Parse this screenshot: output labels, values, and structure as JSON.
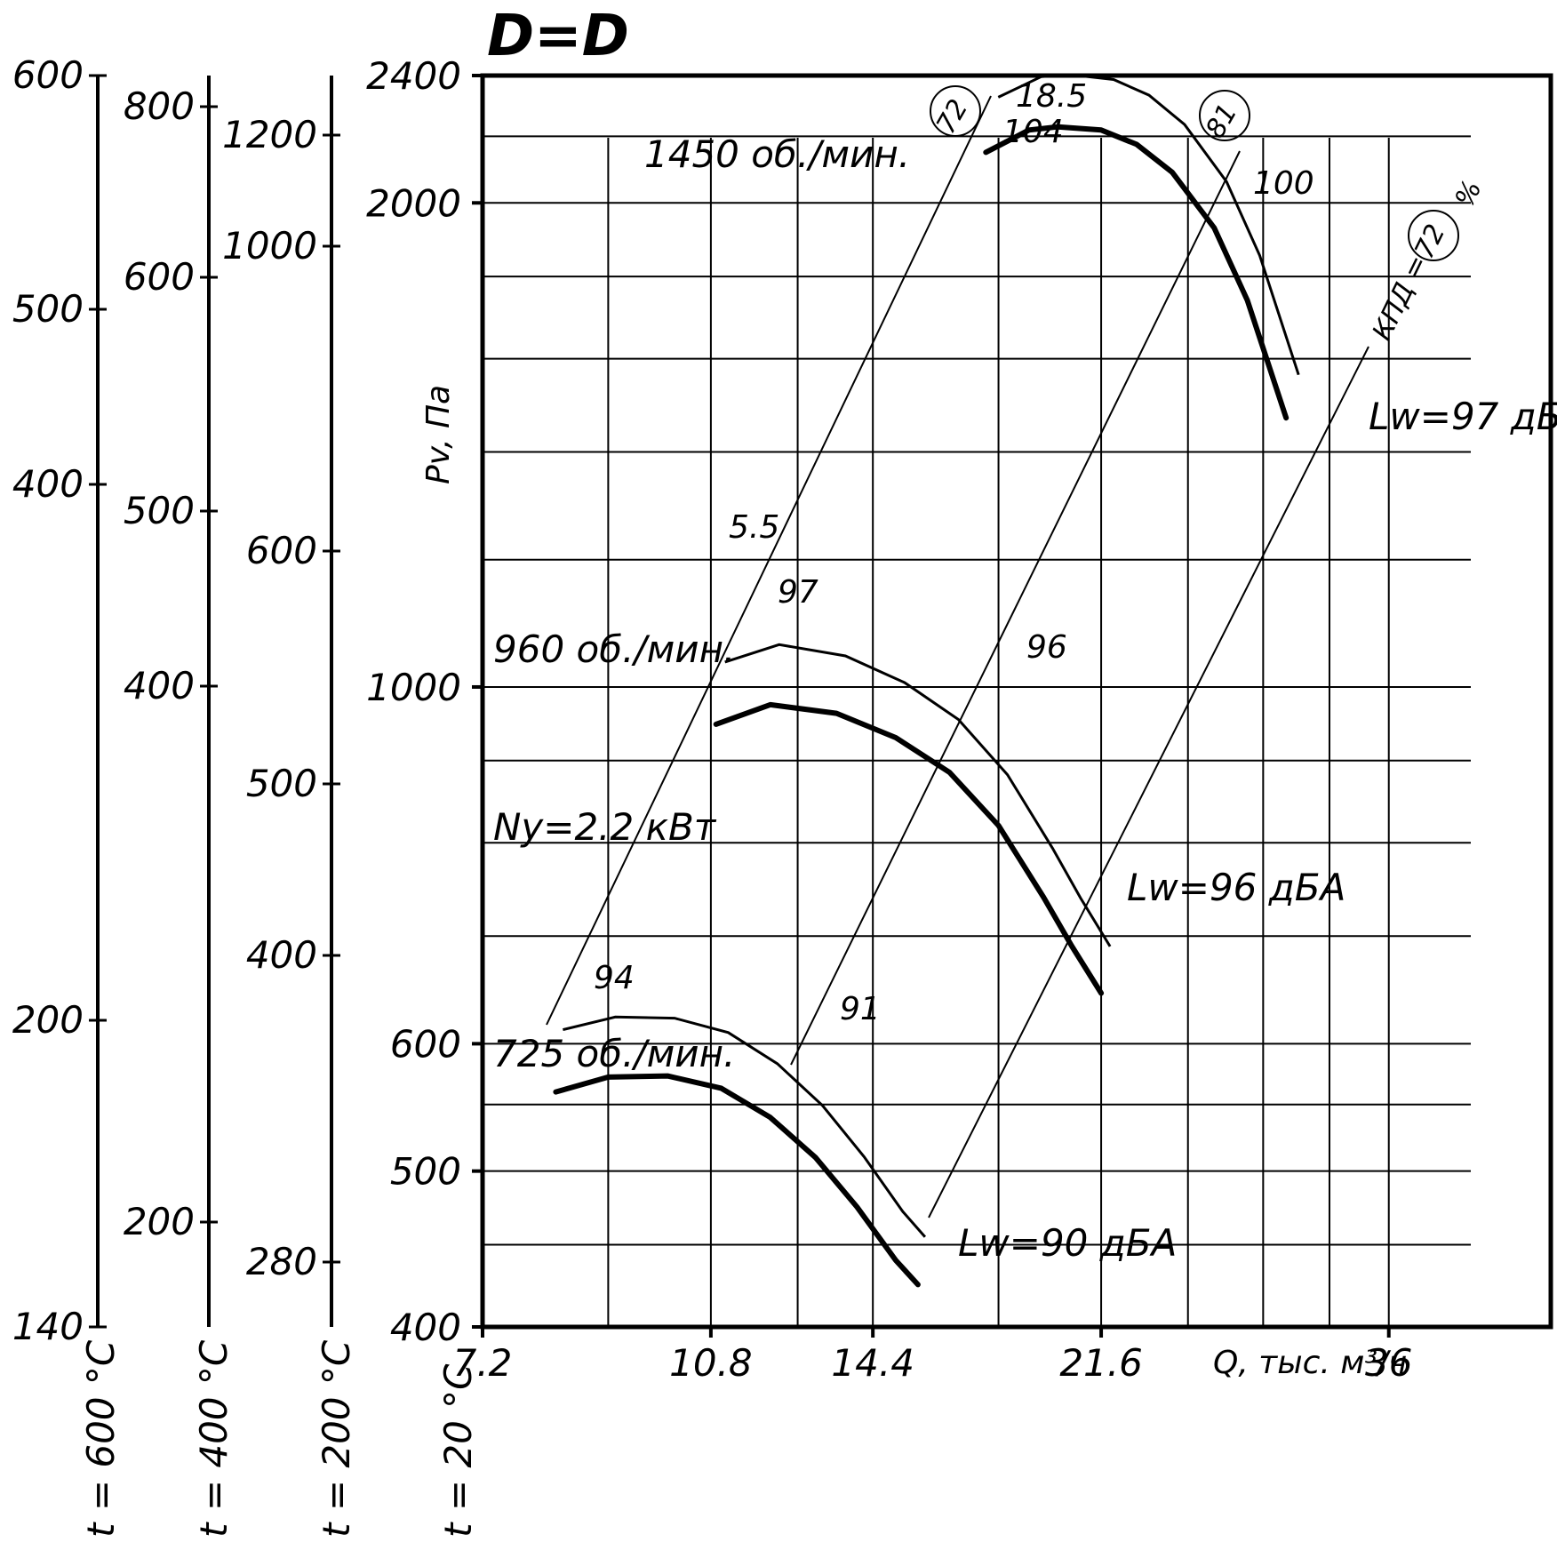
{
  "chart_data": {
    "type": "line",
    "title": "D=D",
    "xlabel": "Q, тыс. м³/ч",
    "ylabel": "Pv, Па",
    "x_scale": "log",
    "y_scale": "log",
    "xlim": [
      7.2,
      48
    ],
    "ylim": [
      400,
      2400
    ],
    "x_ticks": [
      "7.2",
      "10.8",
      "14.4",
      "21.6",
      "36"
    ],
    "y_ticks": [
      "400",
      "500",
      "600",
      "1000",
      "2000",
      "2400"
    ],
    "temp_scales": [
      {
        "label": "t = 600 °C",
        "ticks": [
          "140",
          "200",
          "400",
          "500",
          "600"
        ]
      },
      {
        "label": "t = 400 °C",
        "ticks": [
          "200",
          "400",
          "500",
          "600",
          "800"
        ]
      },
      {
        "label": "t = 200 °C",
        "ticks": [
          "280",
          "400",
          "500",
          "600",
          "1000",
          "1200"
        ]
      },
      {
        "label": "t = 20 °C",
        "ticks": []
      }
    ],
    "series": [
      {
        "name": "1450 об./мин.",
        "efficiency": "104",
        "power": "18.5",
        "noise": "Lw=97 дБА",
        "x": [
          17.6,
          19.0,
          20.0,
          21.6,
          23.0,
          24.5,
          26.4,
          28.0,
          30.0
        ],
        "y": [
          2150,
          2220,
          2230,
          2220,
          2175,
          2090,
          1930,
          1740,
          1470
        ]
      },
      {
        "name": "960 об./мин.",
        "efficiency": "97",
        "power": "5.5",
        "noise": "Lw=96 дБА",
        "x": [
          10.9,
          12.0,
          13.5,
          15.0,
          16.5,
          18.0,
          19.5,
          20.5,
          21.6
        ],
        "y": [
          948,
          975,
          963,
          930,
          885,
          820,
          740,
          690,
          645
        ]
      },
      {
        "name": "725 об./мин.",
        "efficiency": "94",
        "power": "Ny=2.2 кВт",
        "noise": "Lw=90 дБА",
        "x": [
          8.2,
          9.0,
          10.0,
          11.0,
          12.0,
          13.0,
          14.0,
          15.0,
          15.6
        ],
        "y": [
          560,
          572,
          573,
          563,
          540,
          510,
          475,
          440,
          425
        ]
      }
    ],
    "efficiency_labels": {
      "kpd_prefix": "КПД =",
      "kpd_value": "72",
      "kpd_unit": "%",
      "circle_72": "72",
      "circle_81": "81",
      "line_100": "100",
      "line_96": "96",
      "line_91": "91"
    }
  }
}
